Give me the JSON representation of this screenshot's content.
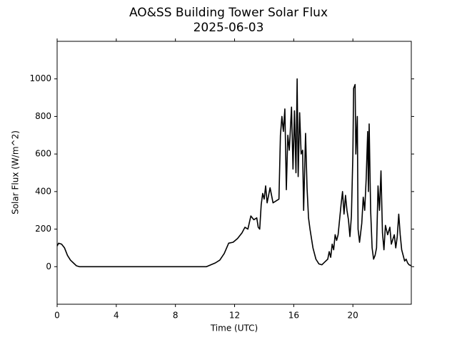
{
  "chart_data": {
    "type": "line",
    "title": "AO&SS Building Tower Solar Flux",
    "subtitle": "2025-06-03",
    "x_label": "Time (UTC)",
    "y_label": "Solar Flux (W/m^2)",
    "xlim": [
      0,
      23.95
    ],
    "xticks": [
      0,
      4,
      8,
      12,
      16,
      20
    ],
    "ylim": [
      -200,
      1200
    ],
    "yticks": [
      0,
      200,
      400,
      600,
      800,
      1000
    ],
    "grid": false,
    "series": [
      {
        "color": "#000000",
        "x": [
          0,
          0.1,
          0.3,
          0.5,
          0.7,
          0.9,
          1.1,
          1.3,
          1.5,
          10.1,
          10.4,
          10.7,
          11.0,
          11.3,
          11.6,
          11.9,
          12.2,
          12.5,
          12.7,
          12.9,
          13.1,
          13.3,
          13.5,
          13.6,
          13.7,
          13.8,
          13.9,
          14.0,
          14.1,
          14.2,
          14.4,
          14.6,
          14.8,
          15.0,
          15.1,
          15.2,
          15.3,
          15.4,
          15.5,
          15.6,
          15.7,
          15.85,
          15.95,
          16.05,
          16.15,
          16.23,
          16.3,
          16.4,
          16.5,
          16.6,
          16.67,
          16.8,
          16.9,
          17.0,
          17.1,
          17.3,
          17.5,
          17.7,
          17.9,
          18.1,
          18.3,
          18.4,
          18.5,
          18.6,
          18.7,
          18.8,
          18.9,
          19.0,
          19.1,
          19.2,
          19.3,
          19.4,
          19.5,
          19.6,
          19.7,
          19.8,
          19.9,
          20.0,
          20.05,
          20.15,
          20.2,
          20.3,
          20.35,
          20.45,
          20.6,
          20.7,
          20.8,
          20.9,
          21.0,
          21.05,
          21.1,
          21.2,
          21.3,
          21.4,
          21.5,
          21.6,
          21.7,
          21.8,
          21.9,
          22.0,
          22.1,
          22.2,
          22.35,
          22.5,
          22.6,
          22.8,
          22.9,
          23.0,
          23.1,
          23.2,
          23.3,
          23.5,
          23.6,
          23.7,
          23.8,
          23.95
        ],
        "values": [
          110,
          125,
          120,
          100,
          60,
          35,
          20,
          5,
          0,
          0,
          10,
          20,
          35,
          70,
          125,
          130,
          150,
          180,
          210,
          200,
          270,
          250,
          260,
          210,
          200,
          330,
          390,
          360,
          430,
          340,
          420,
          340,
          350,
          360,
          700,
          800,
          720,
          840,
          410,
          700,
          620,
          850,
          520,
          830,
          500,
          1000,
          480,
          820,
          600,
          620,
          300,
          710,
          420,
          260,
          200,
          100,
          40,
          15,
          10,
          25,
          40,
          80,
          50,
          120,
          90,
          170,
          140,
          170,
          250,
          330,
          400,
          280,
          380,
          300,
          250,
          160,
          270,
          600,
          950,
          970,
          600,
          800,
          200,
          130,
          230,
          370,
          300,
          470,
          720,
          400,
          760,
          300,
          100,
          40,
          60,
          100,
          430,
          300,
          510,
          180,
          90,
          220,
          170,
          210,
          120,
          170,
          100,
          160,
          280,
          170,
          90,
          30,
          40,
          20,
          10,
          5
        ]
      }
    ]
  }
}
